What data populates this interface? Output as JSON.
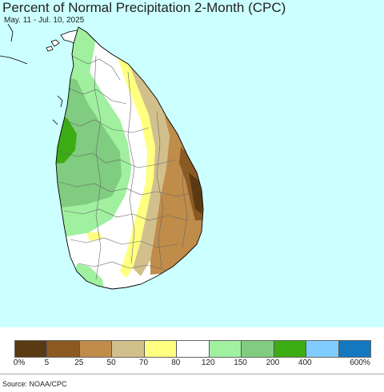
{
  "header": {
    "title": "Percent of Normal Precipitation 2-Month (CPC)",
    "subtitle": "May. 11 - Jul. 10, 2025"
  },
  "legend": {
    "colors": [
      "#5a3a12",
      "#8b5a22",
      "#c08c4a",
      "#d2c08c",
      "#ffff80",
      "#ffffff",
      "#a0f0a0",
      "#80cc80",
      "#3cac14",
      "#80ccff",
      "#1478c0"
    ],
    "labels": [
      "0%",
      "5",
      "25",
      "50",
      "70",
      "80",
      "120",
      "150",
      "200",
      "400",
      "600%"
    ]
  },
  "footer": {
    "source": "Source: NOAA/CPC"
  },
  "map": {
    "ocean_color": "#ccffff",
    "region": "Sri Lanka"
  }
}
